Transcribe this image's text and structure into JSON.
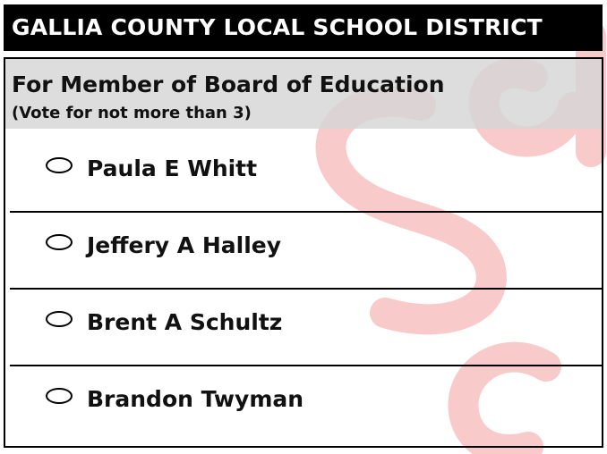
{
  "district": {
    "title": "GALLIA COUNTY LOCAL SCHOOL DISTRICT"
  },
  "contest": {
    "office": "For Member of Board of Education",
    "instruction": "(Vote for not more than 3)",
    "candidates": [
      {
        "name": "Paula E Whitt"
      },
      {
        "name": "Jeffery A Halley"
      },
      {
        "name": "Brent A Schultz"
      },
      {
        "name": "Brandon Twyman"
      }
    ]
  },
  "watermark": {
    "color": "#f6c8c8"
  }
}
